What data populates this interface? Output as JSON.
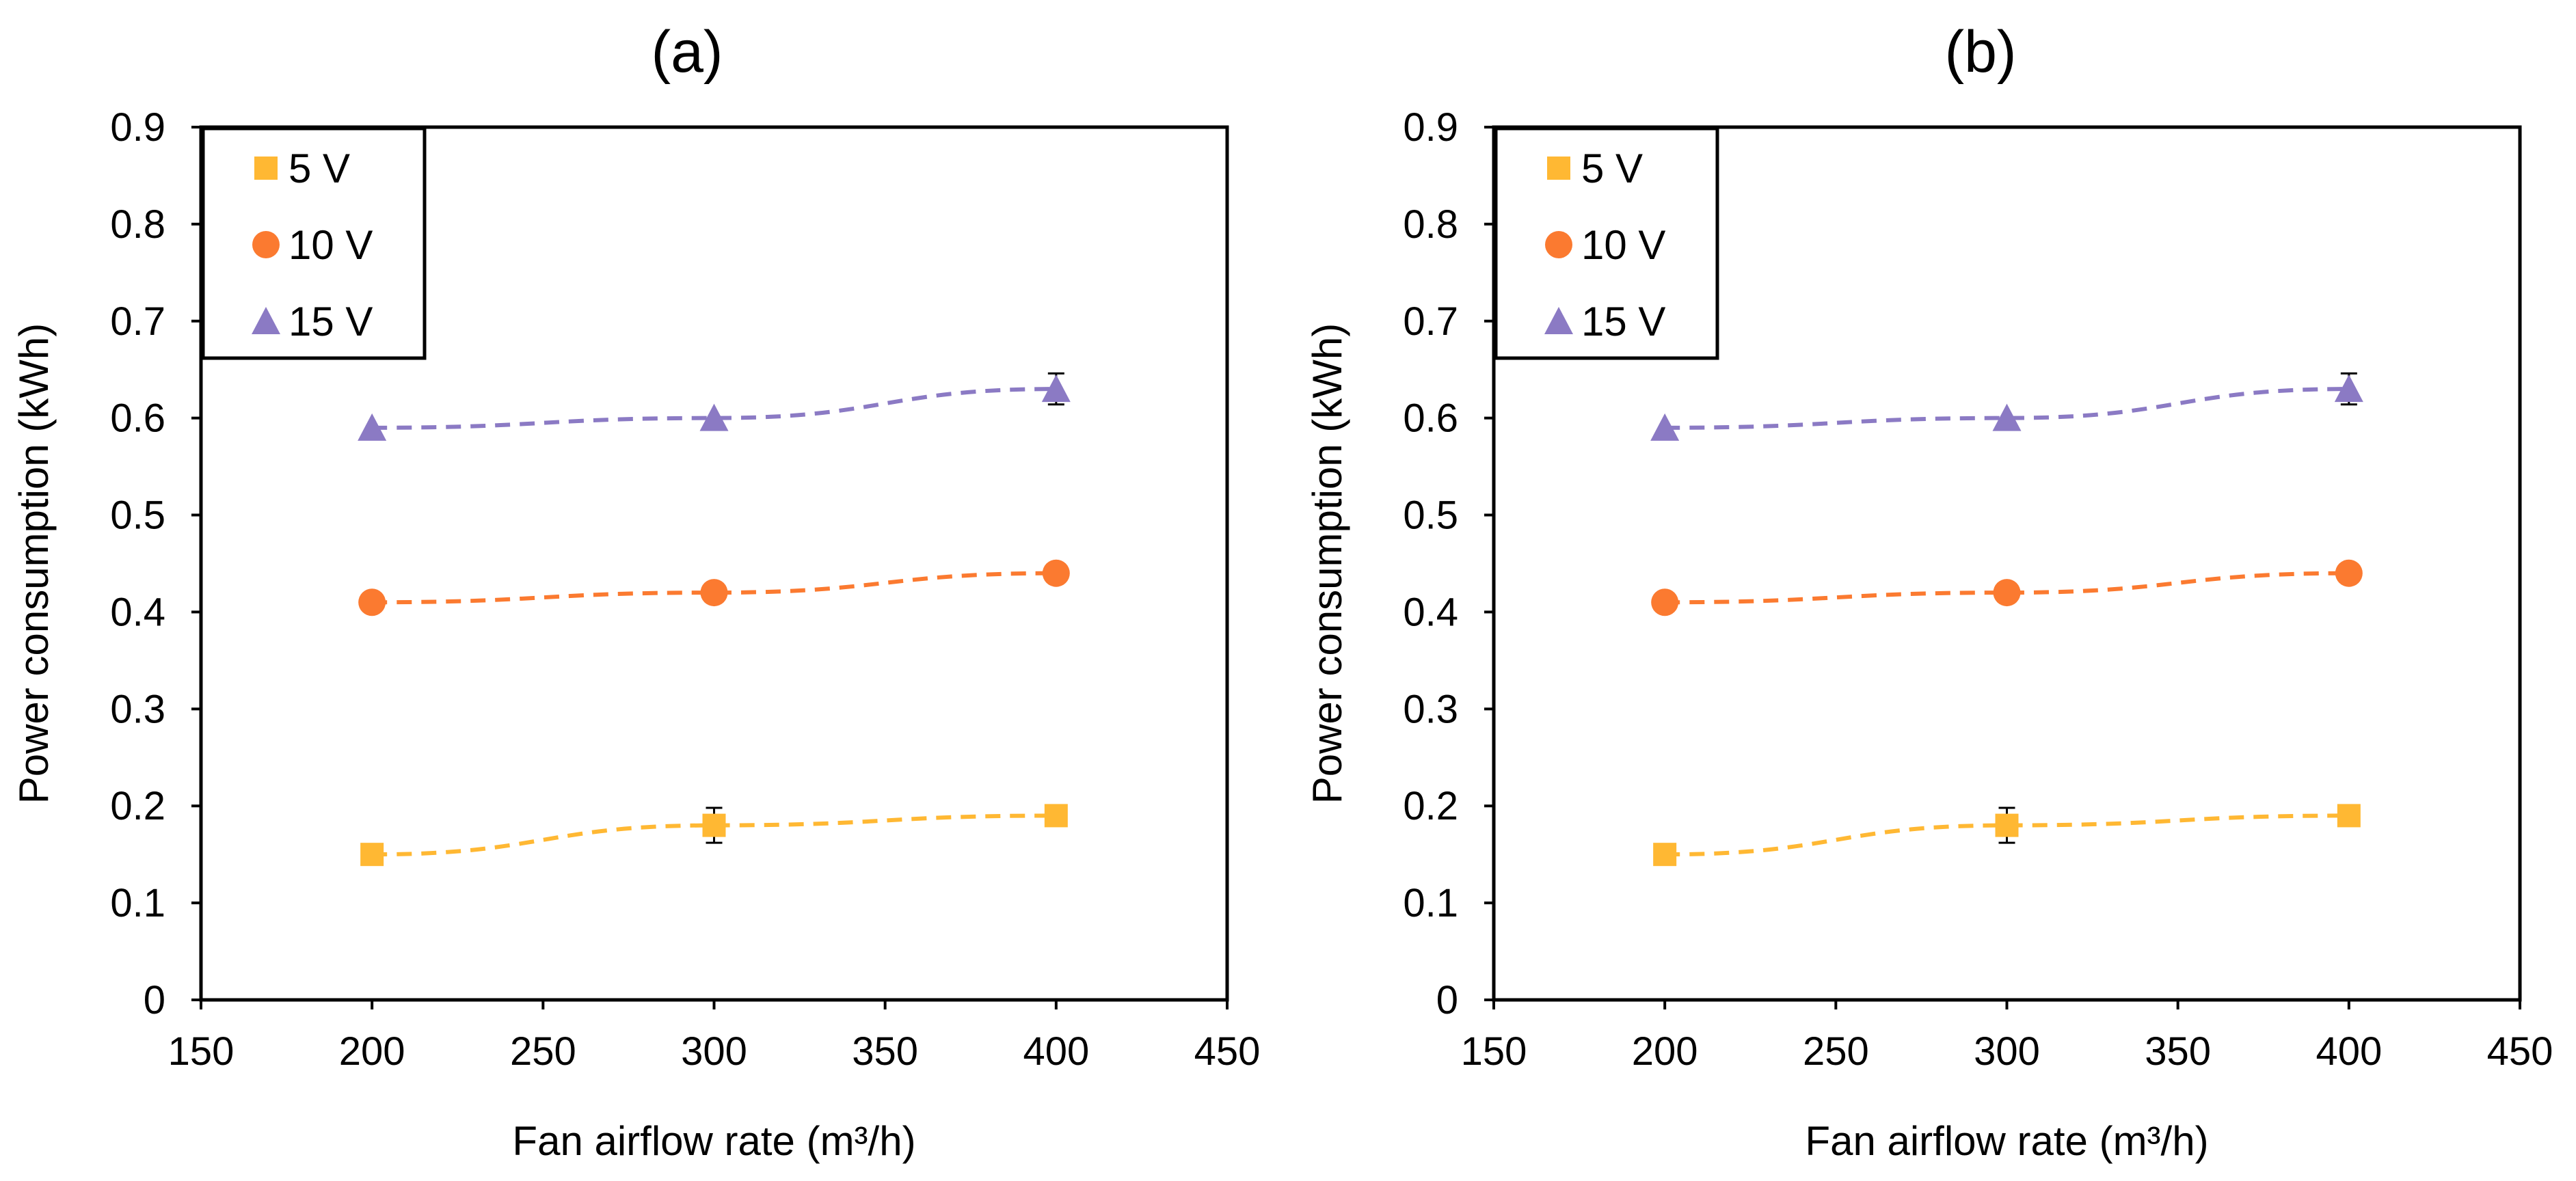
{
  "chart_data": [
    {
      "type": "scatter",
      "title": "(a)",
      "xlabel": "Fan airflow rate (m³/h)",
      "ylabel": "Power consumption (kWh)",
      "xlim": [
        150,
        450
      ],
      "ylim": [
        0,
        0.9
      ],
      "xticks": [
        "150",
        "200",
        "250",
        "300",
        "350",
        "400",
        "450"
      ],
      "yticks": [
        "0",
        "0.1",
        "0.2",
        "0.3",
        "0.4",
        "0.5",
        "0.6",
        "0.7",
        "0.8",
        "0.9"
      ],
      "legend_position": "top-left",
      "x": [
        200,
        300,
        400
      ],
      "series": [
        {
          "name": "5 V",
          "marker": "square",
          "color": "#FFB833",
          "values": [
            0.15,
            0.18,
            0.19
          ],
          "errors": [
            0,
            0.018,
            0
          ]
        },
        {
          "name": "10 V",
          "marker": "circle",
          "color": "#FB7A30",
          "values": [
            0.41,
            0.42,
            0.44
          ],
          "errors": [
            0,
            0,
            0
          ]
        },
        {
          "name": "15 V",
          "marker": "triangle",
          "color": "#8B7AC4",
          "values": [
            0.59,
            0.6,
            0.63
          ],
          "errors": [
            0,
            0,
            0.016
          ]
        }
      ]
    },
    {
      "type": "scatter",
      "title": "(b)",
      "xlabel": "Fan airflow rate (m³/h)",
      "ylabel": "Power consumption (kWh)",
      "xlim": [
        150,
        450
      ],
      "ylim": [
        0,
        0.9
      ],
      "xticks": [
        "150",
        "200",
        "250",
        "300",
        "350",
        "400",
        "450"
      ],
      "yticks": [
        "0",
        "0.1",
        "0.2",
        "0.3",
        "0.4",
        "0.5",
        "0.6",
        "0.7",
        "0.8",
        "0.9"
      ],
      "legend_position": "top-left",
      "x": [
        200,
        300,
        400
      ],
      "series": [
        {
          "name": "5 V",
          "marker": "square",
          "color": "#FFB833",
          "values": [
            0.15,
            0.18,
            0.19
          ],
          "errors": [
            0,
            0.018,
            0
          ]
        },
        {
          "name": "10 V",
          "marker": "circle",
          "color": "#FB7A30",
          "values": [
            0.41,
            0.42,
            0.44
          ],
          "errors": [
            0,
            0,
            0
          ]
        },
        {
          "name": "15 V",
          "marker": "triangle",
          "color": "#8B7AC4",
          "values": [
            0.59,
            0.6,
            0.63
          ],
          "errors": [
            0,
            0,
            0.016
          ]
        }
      ]
    }
  ]
}
